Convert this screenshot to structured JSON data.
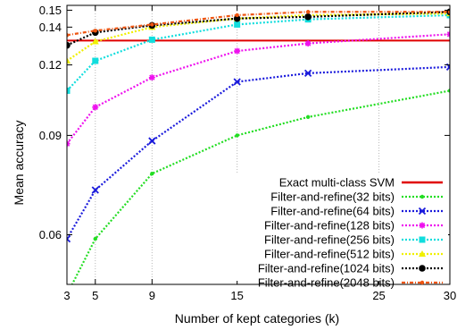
{
  "chart_data": {
    "type": "line",
    "xlabel": "Number of kept categories (k)",
    "ylabel": "Mean accuracy",
    "xlim": [
      3,
      30
    ],
    "ylim": [
      0.049,
      0.153
    ],
    "y_scale": "log",
    "x_ticks": [
      3,
      5,
      9,
      15,
      25,
      30
    ],
    "y_ticks": [
      0.06,
      0.09,
      0.12,
      0.14,
      0.15
    ],
    "x_tick_labels": [
      "3",
      "5",
      "9",
      "15",
      "25",
      "30"
    ],
    "y_tick_labels": [
      "0.06",
      "0.09",
      "0.12",
      "0.14",
      "0.15"
    ],
    "grid": "x-only dotted",
    "legend_position": "bottom-right",
    "reference_line": {
      "name": "Exact multi-class SVM",
      "value": 0.1325,
      "color": "#e00000"
    },
    "series": [
      {
        "name": "Filter-and-refine(32 bits)",
        "color": "#22dd22",
        "marker": "dot",
        "x": [
          3,
          5,
          9,
          15,
          20,
          30
        ],
        "values": [
          0.047,
          0.059,
          0.077,
          0.09,
          0.097,
          0.108
        ]
      },
      {
        "name": "Filter-and-refine(64 bits)",
        "color": "#1a1adc",
        "marker": "x",
        "x": [
          3,
          5,
          9,
          15,
          20,
          30
        ],
        "values": [
          0.059,
          0.072,
          0.088,
          0.112,
          0.116,
          0.119
        ]
      },
      {
        "name": "Filter-and-refine(128 bits)",
        "color": "#ee11ee",
        "marker": "star",
        "x": [
          3,
          5,
          9,
          15,
          20,
          30
        ],
        "values": [
          0.087,
          0.101,
          0.114,
          0.127,
          0.131,
          0.136
        ]
      },
      {
        "name": "Filter-and-refine(256 bits)",
        "color": "#11dddd",
        "marker": "square",
        "x": [
          3,
          5,
          9,
          15,
          20,
          30
        ],
        "values": [
          0.108,
          0.122,
          0.133,
          0.1415,
          0.1445,
          0.147
        ]
      },
      {
        "name": "Filter-and-refine(512 bits)",
        "color": "#f0f000",
        "marker": "triangle",
        "x": [
          3,
          5,
          9,
          15,
          20,
          30
        ],
        "values": [
          0.122,
          0.132,
          0.14,
          0.145,
          0.147,
          0.148
        ]
      },
      {
        "name": "Filter-and-refine(1024 bits)",
        "color": "#000000",
        "marker": "circle",
        "x": [
          3,
          5,
          9,
          15,
          20,
          30
        ],
        "values": [
          0.13,
          0.137,
          0.141,
          0.145,
          0.146,
          0.149
        ]
      },
      {
        "name": "Filter-and-refine(2048 bits)",
        "color": "#ee5511",
        "marker": "dot",
        "x": [
          3,
          5,
          9,
          15,
          20,
          30
        ],
        "values": [
          0.1355,
          0.138,
          0.1415,
          0.147,
          0.149,
          0.149
        ]
      }
    ]
  }
}
